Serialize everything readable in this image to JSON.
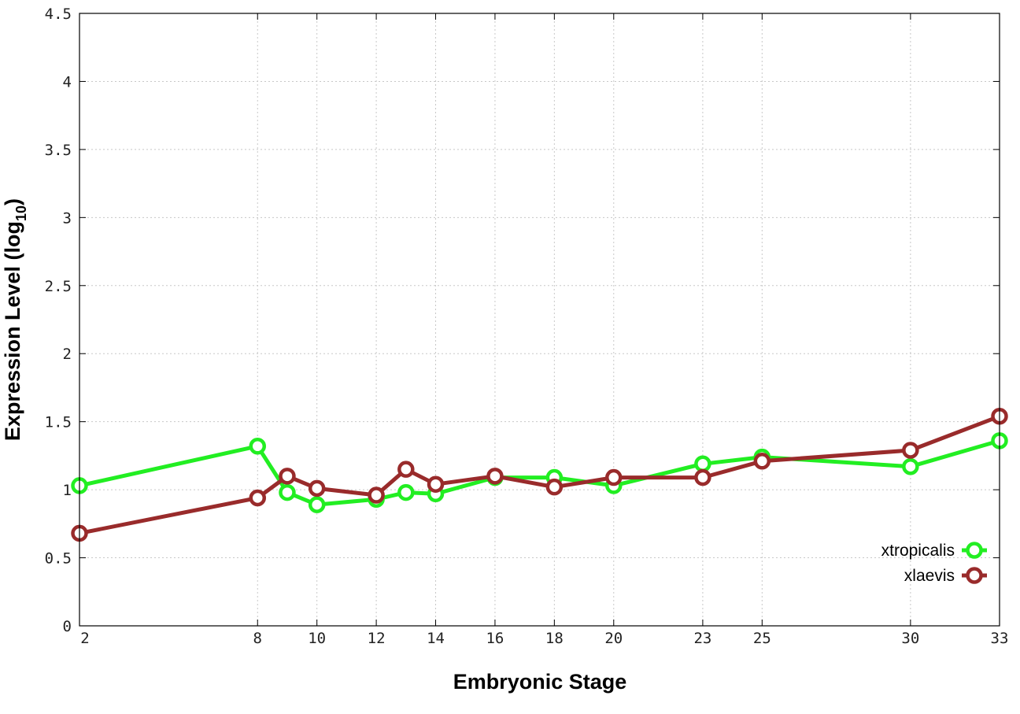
{
  "chart_data": {
    "type": "line",
    "xlabel": "Embryonic Stage",
    "ylabel": "Expression Level (log",
    "ylabel_subscript": "10",
    "ylabel_close": ")",
    "xlim": [
      2,
      33
    ],
    "ylim": [
      0,
      4.5
    ],
    "x_ticks": [
      2,
      8,
      10,
      12,
      14,
      16,
      18,
      20,
      23,
      25,
      30,
      33
    ],
    "x_tick_labels": [
      "2",
      "8",
      "10",
      "12",
      "14",
      "16",
      "18",
      "20",
      "23",
      "25",
      "30",
      "33"
    ],
    "y_ticks": [
      0,
      0.5,
      1,
      1.5,
      2,
      2.5,
      3,
      3.5,
      4,
      4.5
    ],
    "y_tick_labels": [
      "0",
      "0.5",
      "1",
      "1.5",
      "2",
      "2.5",
      "3",
      "3.5",
      "4",
      "4.5"
    ],
    "grid": true,
    "legend_position": "bottom-right",
    "series": [
      {
        "name": "xtropicalis",
        "color": "#22ee22",
        "x": [
          2,
          8,
          9,
          10,
          12,
          13,
          14,
          16,
          18,
          20,
          23,
          25,
          30,
          33
        ],
        "values": [
          1.03,
          1.32,
          0.98,
          0.89,
          0.93,
          0.98,
          0.97,
          1.09,
          1.09,
          1.03,
          1.19,
          1.24,
          1.17,
          1.36
        ]
      },
      {
        "name": "xlaevis",
        "color": "#992b2b",
        "x": [
          2,
          8,
          9,
          10,
          12,
          13,
          14,
          16,
          18,
          20,
          23,
          25,
          30,
          33
        ],
        "values": [
          0.68,
          0.94,
          1.1,
          1.01,
          0.96,
          1.15,
          1.04,
          1.1,
          1.02,
          1.09,
          1.09,
          1.21,
          1.29,
          1.54
        ]
      }
    ]
  }
}
